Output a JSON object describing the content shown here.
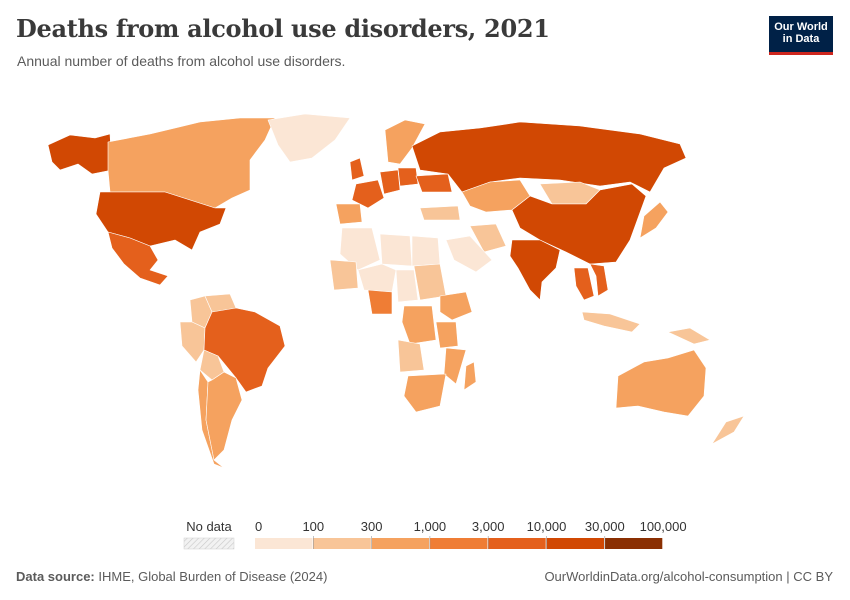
{
  "header": {
    "title": "Deaths from alcohol use disorders, 2021",
    "subtitle": "Annual number of deaths from alcohol use disorders."
  },
  "logo": {
    "line1": "Our World",
    "line2": "in Data"
  },
  "legend": {
    "no_data_label": "No data",
    "bins": [
      "0",
      "100",
      "300",
      "1,000",
      "3,000",
      "10,000",
      "30,000",
      "100,000"
    ],
    "colors": [
      "#fbe6d5",
      "#f8c598",
      "#f5a25f",
      "#ef7d35",
      "#e4601c",
      "#d14803",
      "#8a2f02"
    ]
  },
  "footer": {
    "source_label": "Data source:",
    "source_text": "IHME, Global Burden of Disease (2024)",
    "url": "OurWorldinData.org/alcohol-consumption",
    "separator": " | ",
    "license": "CC BY"
  },
  "map_data": {
    "type": "choropleth",
    "year": 2021,
    "regions": [
      {
        "region": "United States",
        "bin": 5
      },
      {
        "region": "Russia",
        "bin": 5
      },
      {
        "region": "China",
        "bin": 5
      },
      {
        "region": "India",
        "bin": 5
      },
      {
        "region": "Mexico",
        "bin": 4
      },
      {
        "region": "Brazil",
        "bin": 4
      },
      {
        "region": "Canada",
        "bin": 2
      },
      {
        "region": "Alaska",
        "bin": 5
      },
      {
        "region": "Australia",
        "bin": 2
      },
      {
        "region": "Greenland",
        "bin": 0
      },
      {
        "region": "Kazakhstan",
        "bin": 2
      },
      {
        "region": "Mongolia",
        "bin": 1
      },
      {
        "region": "Argentina",
        "bin": 2
      },
      {
        "region": "Nigeria",
        "bin": 3
      },
      {
        "region": "South Africa",
        "bin": 2
      },
      {
        "region": "Ethiopia",
        "bin": 2
      },
      {
        "region": "Thailand",
        "bin": 4
      },
      {
        "region": "Vietnam",
        "bin": 4
      },
      {
        "region": "Japan",
        "bin": 2
      },
      {
        "region": "Indonesia",
        "bin": 1
      },
      {
        "region": "Saudi Arabia",
        "bin": 0
      },
      {
        "region": "Algeria",
        "bin": 0
      },
      {
        "region": "Libya",
        "bin": 0
      },
      {
        "region": "Egypt",
        "bin": 0
      },
      {
        "region": "Iran",
        "bin": 1
      },
      {
        "region": "Sudan",
        "bin": 1
      },
      {
        "region": "Mali",
        "bin": 1
      },
      {
        "region": "Niger",
        "bin": 0
      },
      {
        "region": "Chad",
        "bin": 0
      },
      {
        "region": "Peru",
        "bin": 1
      },
      {
        "region": "Colombia",
        "bin": 1
      },
      {
        "region": "Venezuela",
        "bin": 1
      },
      {
        "region": "Bolivia",
        "bin": 1
      },
      {
        "region": "Chile",
        "bin": 2
      },
      {
        "region": "DR Congo",
        "bin": 2
      },
      {
        "region": "Angola",
        "bin": 1
      },
      {
        "region": "Tanzania",
        "bin": 2
      },
      {
        "region": "Mozambique",
        "bin": 2
      },
      {
        "region": "Madagascar",
        "bin": 2
      },
      {
        "region": "Germany",
        "bin": 4
      },
      {
        "region": "France",
        "bin": 4
      },
      {
        "region": "United Kingdom",
        "bin": 4
      },
      {
        "region": "Spain",
        "bin": 2
      },
      {
        "region": "Poland",
        "bin": 4
      },
      {
        "region": "Ukraine",
        "bin": 4
      },
      {
        "region": "Scandinavia",
        "bin": 2
      },
      {
        "region": "Turkey",
        "bin": 1
      },
      {
        "region": "Papua New Guinea",
        "bin": 1
      },
      {
        "region": "New Zealand",
        "bin": 1
      }
    ]
  }
}
